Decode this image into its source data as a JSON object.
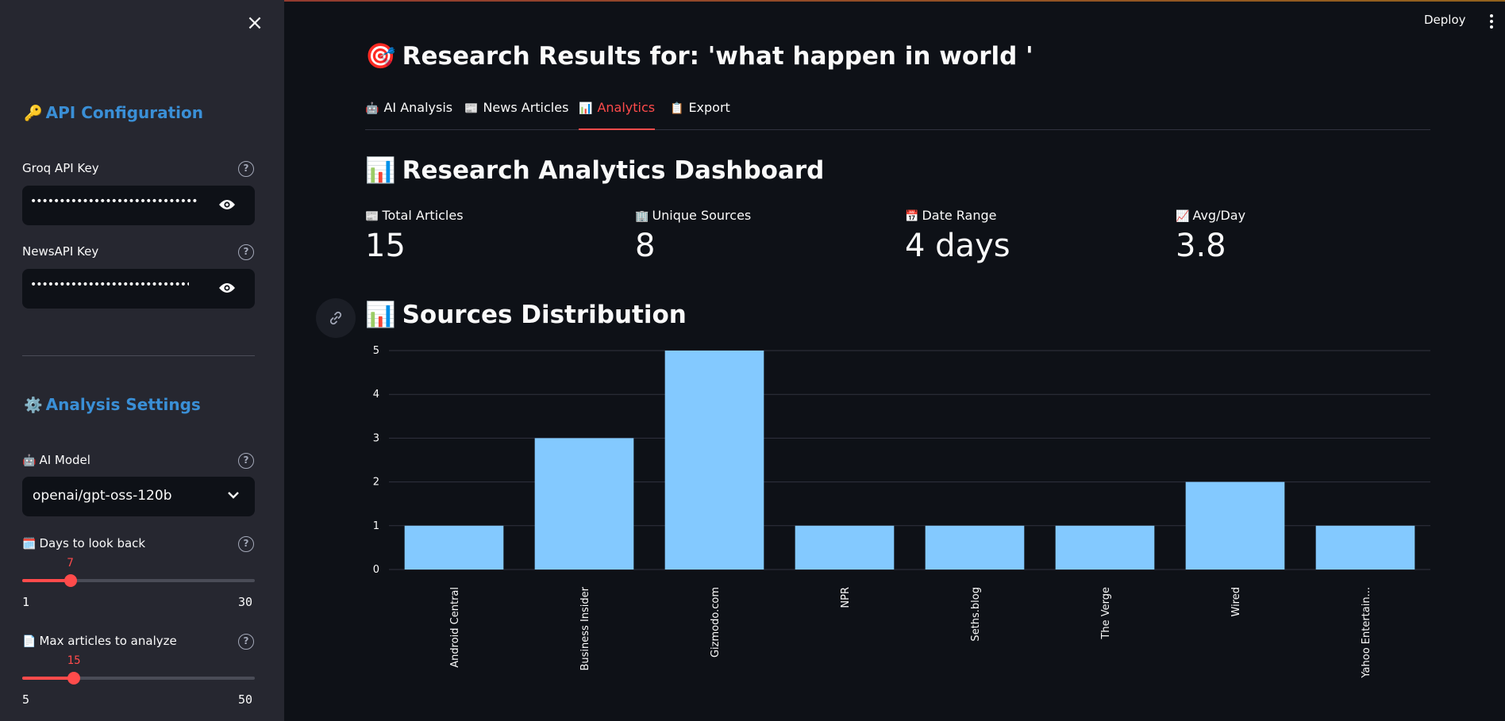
{
  "sidebar": {
    "close_label": "×",
    "api_heading": {
      "emoji": "🔑",
      "text": "API Configuration"
    },
    "groq": {
      "label": "Groq API Key",
      "value": "••••••••••••••••••••••••••••••••••••",
      "help": "?"
    },
    "newsapi": {
      "label": "NewsAPI Key",
      "value": "••••••••••••••••••••••••••••••••",
      "help": "?"
    },
    "analysis_heading": {
      "emoji": "⚙️",
      "text": "Analysis Settings"
    },
    "ai_model": {
      "emoji": "🤖",
      "label": "AI Model",
      "value": "openai/gpt-oss-120b",
      "help": "?"
    },
    "days": {
      "emoji": "🗓️",
      "label": "Days to look back",
      "value": "7",
      "min": "1",
      "max": "30",
      "fraction": 0.2069,
      "help": "?"
    },
    "max_articles": {
      "emoji": "📄",
      "label": "Max articles to analyze",
      "value": "15",
      "min": "5",
      "max": "50",
      "fraction": 0.2222,
      "help": "?"
    }
  },
  "header": {
    "deploy_label": "Deploy"
  },
  "main": {
    "title_emoji": "🎯",
    "title": "Research Results for: 'what happen in world '",
    "tabs": [
      {
        "emoji": "🤖",
        "label": "AI Analysis"
      },
      {
        "emoji": "📰",
        "label": "News Articles"
      },
      {
        "emoji": "📊",
        "label": "Analytics",
        "active": true
      },
      {
        "emoji": "📋",
        "label": "Export"
      }
    ],
    "dashboard_emoji": "📊",
    "dashboard_title": "Research Analytics Dashboard",
    "metrics": [
      {
        "emoji": "📰",
        "label": "Total Articles",
        "value": "15"
      },
      {
        "emoji": "🏢",
        "label": "Unique Sources",
        "value": "8"
      },
      {
        "emoji": "📅",
        "label": "Date Range",
        "value": "4 days"
      },
      {
        "emoji": "📈",
        "label": "Avg/Day",
        "value": "3.8"
      }
    ],
    "sources_emoji": "📊",
    "sources_title": "Sources Distribution"
  },
  "colors": {
    "accent": "#ff4b4b",
    "bar": "#83c9ff",
    "link": "#3a8fd6"
  },
  "chart_data": {
    "type": "bar",
    "categories": [
      "Android Central",
      "Business Insider",
      "Gizmodo.com",
      "NPR",
      "Seths.blog",
      "The Verge",
      "Wired",
      "Yahoo Entertain..."
    ],
    "values": [
      1,
      3,
      5,
      1,
      1,
      1,
      2,
      1
    ],
    "ylim": [
      0,
      5
    ],
    "yticks": [
      0,
      1,
      2,
      3,
      4,
      5
    ],
    "grid": true
  }
}
